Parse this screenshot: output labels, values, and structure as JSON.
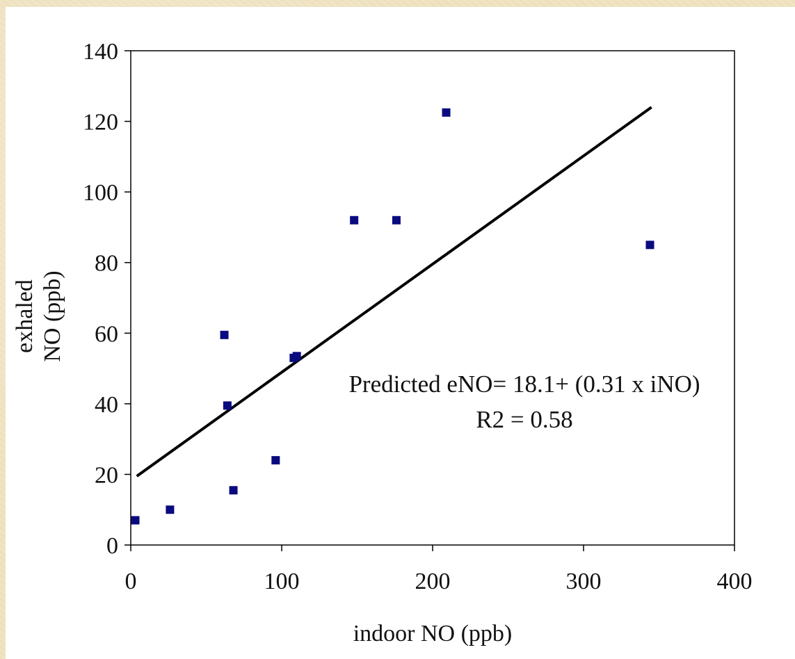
{
  "chart_data": {
    "type": "scatter",
    "xlabel": "indoor NO (ppb)",
    "ylabel_lines": [
      "exhaled",
      "NO (ppb)"
    ],
    "xlim": [
      0,
      400
    ],
    "ylim": [
      0,
      140
    ],
    "x_ticks": [
      0,
      100,
      200,
      300,
      400
    ],
    "y_ticks": [
      0,
      20,
      40,
      60,
      80,
      100,
      120,
      140
    ],
    "grid": false,
    "marker_color": "#0a0a80",
    "line_color": "#000000",
    "points": [
      {
        "x": 3,
        "y": 7
      },
      {
        "x": 26,
        "y": 10
      },
      {
        "x": 62,
        "y": 59.5
      },
      {
        "x": 64,
        "y": 39.5
      },
      {
        "x": 68,
        "y": 15.5
      },
      {
        "x": 96,
        "y": 24
      },
      {
        "x": 108,
        "y": 53
      },
      {
        "x": 110,
        "y": 53.5
      },
      {
        "x": 148,
        "y": 92
      },
      {
        "x": 176,
        "y": 92
      },
      {
        "x": 209,
        "y": 122.5
      },
      {
        "x": 344,
        "y": 85
      }
    ],
    "trendline": {
      "x": [
        4,
        345
      ],
      "y": [
        19.5,
        124
      ]
    },
    "annotation_lines": [
      "Predicted eNO= 18.1+ (0.31 x iNO)",
      "R2 = 0.58"
    ]
  }
}
